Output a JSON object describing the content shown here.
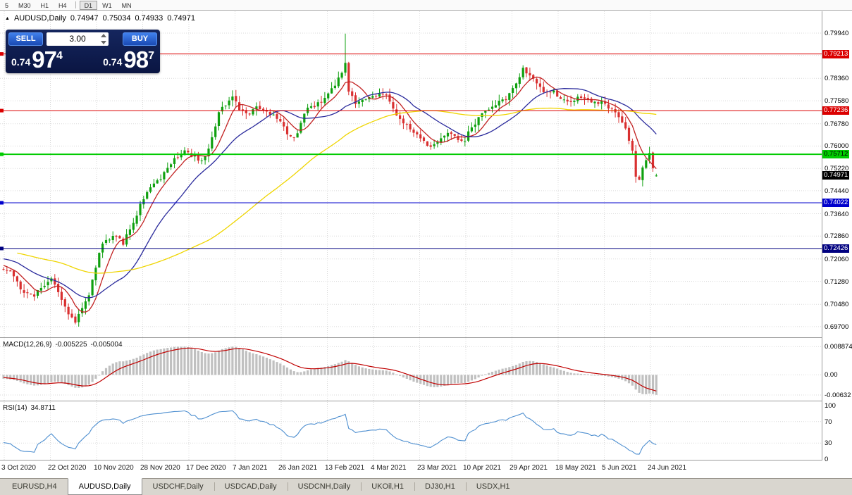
{
  "toolbar": {
    "periods": [
      "5",
      "M30",
      "H1",
      "H4",
      "D1",
      "W1",
      "MN"
    ],
    "active_period": "D1",
    "separator_after_index": 3
  },
  "chart_header": {
    "symbol": "AUDUSD,Daily",
    "open": "0.74947",
    "high": "0.75034",
    "low": "0.74933",
    "close": "0.74971"
  },
  "trade_panel": {
    "sell_label": "SELL",
    "buy_label": "BUY",
    "volume": "3.00",
    "sell_price": {
      "small": "0.74",
      "big": "97",
      "sup": "4"
    },
    "buy_price": {
      "small": "0.74",
      "big": "98",
      "sup": "7"
    }
  },
  "hlines": [
    {
      "price": 0.79213,
      "label": "0.79213",
      "color": "#DB0000",
      "text_color": "#FFFFFF",
      "width": 1,
      "left_marker": true
    },
    {
      "price": 0.77236,
      "label": "0.77236",
      "color": "#DB0000",
      "text_color": "#FFFFFF",
      "width": 1,
      "left_marker": true
    },
    {
      "price": 0.75712,
      "label": "0.75712",
      "color": "#00CC00",
      "text_color": "#000000",
      "width": 2,
      "left_marker": true
    },
    {
      "price": 0.74022,
      "label": "0.74022",
      "color": "#0000CD",
      "text_color": "#FFFFFF",
      "width": 1,
      "left_marker": true
    },
    {
      "price": 0.72426,
      "label": "0.72426",
      "color": "#000080",
      "text_color": "#FFFFFF",
      "width": 1,
      "left_marker": true
    }
  ],
  "current_price_badge": {
    "value": "0.74971",
    "bg": "#000000",
    "fg": "#FFFFFF"
  },
  "macd_pane": {
    "label": "MACD(12,26,9)",
    "main_value": "-0.005225",
    "signal_value": "-0.005004",
    "axis": [
      {
        "text": "0.008874",
        "v": 0.008874
      },
      {
        "text": "0.00",
        "v": 0
      },
      {
        "text": "-0.00632",
        "v": -0.00632
      }
    ]
  },
  "rsi_pane": {
    "label": "RSI(14)",
    "value": "34.8711",
    "axis": [
      {
        "text": "100",
        "v": 100
      },
      {
        "text": "70",
        "v": 70
      },
      {
        "text": "30",
        "v": 30
      },
      {
        "text": "0",
        "v": 0
      }
    ]
  },
  "tabs": [
    {
      "label": "EURUSD,H4"
    },
    {
      "label": "AUDUSD,Daily",
      "active": true
    },
    {
      "label": "USDCHF,Daily"
    },
    {
      "label": "USDCAD,Daily"
    },
    {
      "label": "USDCNH,Daily"
    },
    {
      "label": "UKOil,H1"
    },
    {
      "label": "DJ30,H1"
    },
    {
      "label": "USDX,H1"
    }
  ],
  "colors": {
    "bull_candle": "#0FA00F",
    "bear_candle": "#D93030",
    "ma_fast_red": "#C22121",
    "ma_mid_blue": "#2A2A9C",
    "ma_slow_yellow": "#EFD500",
    "macd_histogram": "#C0C0C0",
    "macd_signal": "#C00000",
    "rsi_line": "#4E8FD0",
    "grid": "#DADADA",
    "pane_separator": "#9A9A9A"
  },
  "chart_data": {
    "type": "candlestick",
    "symbol": "AUDUSD",
    "period": "Daily",
    "y_ticks": [
      "0.79940",
      "0.78360",
      "0.77580",
      "0.76780",
      "0.76000",
      "0.75220",
      "0.74440",
      "0.73640",
      "0.72860",
      "0.72060",
      "0.71280",
      "0.70480",
      "0.69700"
    ],
    "y_hidden_grid": 0.7916,
    "x_tick_dates": [
      "3 Oct 2020",
      "22 Oct 2020",
      "10 Nov 2020",
      "28 Nov 2020",
      "17 Dec 2020",
      "7 Jan 2021",
      "26 Jan 2021",
      "13 Feb 2021",
      "4 Mar 2021",
      "23 Mar 2021",
      "10 Apr 2021",
      "29 Apr 2021",
      "18 May 2021",
      "5 Jun 2021",
      "24 Jun 2021"
    ],
    "last_candle": {
      "open": 0.74947,
      "high": 0.75034,
      "low": 0.74933,
      "close": 0.74971
    },
    "horizontal_levels": [
      0.79213,
      0.77236,
      0.75712,
      0.74022,
      0.72426
    ],
    "current_price": 0.74971,
    "moving_averages": [
      {
        "name": "fast",
        "period": 7,
        "color_key": "ma_fast_red"
      },
      {
        "name": "mid",
        "period": 20,
        "color_key": "ma_mid_blue"
      },
      {
        "name": "slow",
        "period": 65,
        "color_key": "ma_slow_yellow"
      }
    ],
    "macd": {
      "params": [
        12,
        26,
        9
      ],
      "last_main": -0.005225,
      "last_signal": -0.005004,
      "pos_peak": 0.0089,
      "neg_peak": -0.0063
    },
    "rsi": {
      "params": [
        14
      ],
      "last": 34.8711
    },
    "candles_visible": 192,
    "lead_in_candles": 60,
    "noise_seed": 42,
    "approx_close_path": [
      [
        -60,
        0.726
      ],
      [
        -45,
        0.73
      ],
      [
        -30,
        0.718
      ],
      [
        -15,
        0.723
      ],
      [
        -5,
        0.7195
      ],
      [
        0,
        0.717
      ],
      [
        3,
        0.7148
      ],
      [
        6,
        0.7092
      ],
      [
        9,
        0.7078
      ],
      [
        12,
        0.7118
      ],
      [
        14,
        0.7142
      ],
      [
        17,
        0.7062
      ],
      [
        19,
        0.7012
      ],
      [
        21,
        0.6992
      ],
      [
        23,
        0.7042
      ],
      [
        25,
        0.7072
      ],
      [
        27,
        0.718
      ],
      [
        29,
        0.7268
      ],
      [
        32,
        0.7288
      ],
      [
        35,
        0.7262
      ],
      [
        37,
        0.7312
      ],
      [
        40,
        0.739
      ],
      [
        42,
        0.744
      ],
      [
        45,
        0.7478
      ],
      [
        47,
        0.7504
      ],
      [
        50,
        0.7554
      ],
      [
        53,
        0.759
      ],
      [
        55,
        0.7562
      ],
      [
        58,
        0.7546
      ],
      [
        60,
        0.76
      ],
      [
        63,
        0.7718
      ],
      [
        65,
        0.7744
      ],
      [
        67,
        0.7768
      ],
      [
        69,
        0.7736
      ],
      [
        72,
        0.7706
      ],
      [
        74,
        0.7734
      ],
      [
        76,
        0.7728
      ],
      [
        79,
        0.77
      ],
      [
        81,
        0.7676
      ],
      [
        83,
        0.7642
      ],
      [
        85,
        0.7626
      ],
      [
        87,
        0.768
      ],
      [
        89,
        0.7728
      ],
      [
        91,
        0.7744
      ],
      [
        93,
        0.7758
      ],
      [
        95,
        0.7774
      ],
      [
        97,
        0.7804
      ],
      [
        99,
        0.7858
      ],
      [
        100,
        0.7888
      ],
      [
        101,
        0.7796
      ],
      [
        103,
        0.7742
      ],
      [
        105,
        0.776
      ],
      [
        107,
        0.7772
      ],
      [
        109,
        0.778
      ],
      [
        111,
        0.7782
      ],
      [
        113,
        0.775
      ],
      [
        115,
        0.7716
      ],
      [
        117,
        0.7682
      ],
      [
        119,
        0.7656
      ],
      [
        121,
        0.7632
      ],
      [
        123,
        0.7624
      ],
      [
        125,
        0.7602
      ],
      [
        127,
        0.7612
      ],
      [
        129,
        0.764
      ],
      [
        131,
        0.7652
      ],
      [
        133,
        0.763
      ],
      [
        135,
        0.7618
      ],
      [
        137,
        0.766
      ],
      [
        139,
        0.771
      ],
      [
        141,
        0.7722
      ],
      [
        143,
        0.7736
      ],
      [
        145,
        0.775
      ],
      [
        147,
        0.7772
      ],
      [
        149,
        0.78
      ],
      [
        151,
        0.784
      ],
      [
        152,
        0.7868
      ],
      [
        153,
        0.7854
      ],
      [
        155,
        0.784
      ],
      [
        157,
        0.78
      ],
      [
        159,
        0.7782
      ],
      [
        161,
        0.779
      ],
      [
        163,
        0.7766
      ],
      [
        165,
        0.7756
      ],
      [
        167,
        0.775
      ],
      [
        169,
        0.7772
      ],
      [
        171,
        0.7762
      ],
      [
        173,
        0.7752
      ],
      [
        175,
        0.7744
      ],
      [
        177,
        0.7736
      ],
      [
        179,
        0.772
      ],
      [
        181,
        0.7682
      ],
      [
        183,
        0.762
      ],
      [
        184,
        0.7576
      ],
      [
        185,
        0.7502
      ],
      [
        186,
        0.7486
      ],
      [
        187,
        0.7524
      ],
      [
        188,
        0.755
      ],
      [
        189,
        0.7578
      ],
      [
        190,
        0.752
      ],
      [
        191,
        0.7497
      ]
    ]
  }
}
